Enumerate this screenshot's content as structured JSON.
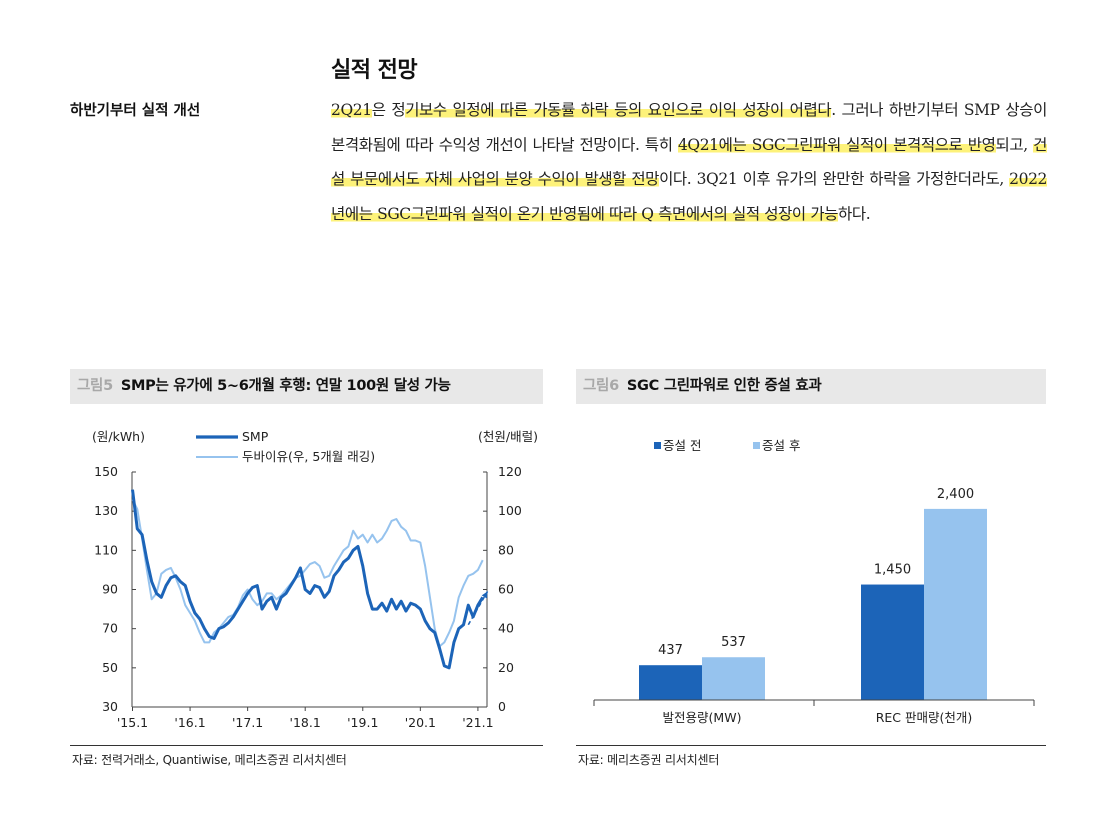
{
  "section": {
    "title": "실적 전망",
    "side_label": "하반기부터 실적 개선",
    "segments": [
      {
        "t": "2Q21",
        "h": true
      },
      {
        "t": "은 정",
        "h": false
      },
      {
        "t": "기보수 일정에 따른 가동률 하락 등의 요인으로 이익 성장이 어렵다",
        "h": true
      },
      {
        "t": ". 그러나 하반기부터 SMP 상승이 본격화됨에 따라 수익성 개선이 나타날 전망이다. 특히 ",
        "h": false
      },
      {
        "t": "4Q21에는 SGC그린파워 실적이 본격적으로 반영",
        "h": true
      },
      {
        "t": "되고, ",
        "h": false
      },
      {
        "t": "건설 부문에서도 자체 사업의 분양 수익이 발생할 전망",
        "h": true
      },
      {
        "t": "이다. 3Q21 이후 유가의 완만한 하락을 가정한더라도, ",
        "h": false
      },
      {
        "t": "2022년에는 SGC그린파워 실적이 온기 반영됨에 따라 Q 측면에서의 실적 성장이 가능",
        "h": true
      },
      {
        "t": "하다.",
        "h": false
      }
    ]
  },
  "figure5": {
    "number": "그림5",
    "title": "SMP는 유가에 5~6개월 후행: 연말 100원 달성 가능",
    "source": "자료: 전력거래소, Quantiwise, 메리츠증권 리서치센터"
  },
  "figure6": {
    "number": "그림6",
    "title": "SGC 그린파워로 인한 증설 효과",
    "source": "자료: 메리츠증권 리서치센터"
  },
  "colors": {
    "dark_blue": "#1c64b8",
    "light_blue": "#96c3ee",
    "axis": "#444444"
  },
  "chart_data": [
    {
      "type": "line",
      "title": "SMP는 유가에 5~6개월 후행: 연말 100원 달성 가능",
      "ylabel": "(원/kWh)",
      "y2label": "(천원/배럴)",
      "ylim": [
        30,
        150
      ],
      "y2lim": [
        0,
        120
      ],
      "yticks": [
        30,
        50,
        70,
        90,
        110,
        130,
        150
      ],
      "y2ticks": [
        0,
        20,
        40,
        60,
        80,
        100,
        120
      ],
      "xticks": [
        "'15.1",
        "'16.1",
        "'17.1",
        "'18.1",
        "'19.1",
        "'20.1",
        "'21.1"
      ],
      "x_start": "2015-01",
      "grid": false,
      "legend": "top-center",
      "series": [
        {
          "name": "SMP",
          "axis": "left",
          "color": "#1c64b8",
          "values": [
            141,
            121,
            118,
            105,
            94,
            88,
            86,
            92,
            96,
            97,
            94,
            92,
            84,
            78,
            75,
            70,
            66,
            65,
            70,
            71,
            73,
            76,
            80,
            84,
            88,
            91,
            92,
            80,
            84,
            86,
            80,
            86,
            88,
            92,
            96,
            101,
            90,
            88,
            92,
            91,
            86,
            89,
            97,
            100,
            104,
            106,
            110,
            112,
            102,
            88,
            80,
            80,
            83,
            79,
            85,
            80,
            84,
            79,
            83,
            82,
            80,
            74,
            70,
            68,
            60,
            51,
            50,
            63,
            70,
            72,
            82,
            76,
            82,
            86
          ]
        },
        {
          "name": "두바이유(우, 5개월 래깅)",
          "axis": "right",
          "color": "#96c3ee",
          "values": [
            106,
            101,
            86,
            70,
            55,
            58,
            68,
            70,
            71,
            66,
            60,
            52,
            48,
            44,
            38,
            33,
            33,
            38,
            40,
            43,
            46,
            47,
            51,
            57,
            60,
            55,
            52,
            54,
            58,
            58,
            55,
            57,
            60,
            63,
            66,
            67,
            70,
            73,
            74,
            72,
            66,
            67,
            72,
            76,
            80,
            82,
            90,
            86,
            88,
            84,
            88,
            84,
            86,
            90,
            95,
            96,
            92,
            90,
            85,
            85,
            84,
            72,
            56,
            40,
            31,
            33,
            38,
            44,
            56,
            62,
            67,
            68,
            70,
            75
          ]
        },
        {
          "name": "forecast",
          "axis": "left",
          "color": "#1c64b8",
          "style": "dashed-arrow",
          "points": [
            [
              70,
              72
            ],
            [
              74,
              89
            ]
          ]
        }
      ]
    },
    {
      "type": "bar",
      "title": "SGC 그린파워로 인한 증설 효과",
      "categories": [
        "발전용량(MW)",
        "REC 판매량(천개)"
      ],
      "series": [
        {
          "name": "증설 전",
          "color": "#1c64b8",
          "values": [
            437,
            1450
          ],
          "labels": [
            "437",
            "1,450"
          ]
        },
        {
          "name": "증설 후",
          "color": "#96c3ee",
          "values": [
            537,
            2400
          ],
          "labels": [
            "537",
            "2,400"
          ]
        }
      ],
      "legend": "top-left"
    }
  ]
}
